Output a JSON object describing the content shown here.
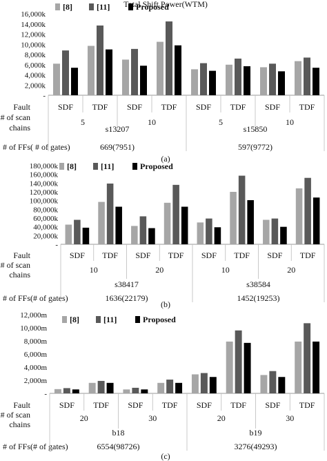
{
  "figure_title": "Total Shift Power(WTM)",
  "legend": {
    "items": [
      {
        "label": "[8]",
        "color": "#a6a6a6"
      },
      {
        "label": "[11]",
        "color": "#595959"
      },
      {
        "label": "Proposed",
        "color": "#000000"
      }
    ]
  },
  "row_labels": {
    "fault": "Fault",
    "scan_chains": [
      "# of scan",
      "chains"
    ],
    "ffs": "# of FFs( # of gates)",
    "ffs_alt": "# of FFs(# of gates)"
  },
  "chart_data": [
    {
      "type": "bar",
      "panel_label": "(a)",
      "y_unit": "k",
      "ylim": [
        0,
        16000
      ],
      "y_ticks": [
        "-",
        "2,000k",
        "4,000k",
        "6,000k",
        "8,000k",
        "10,000k",
        "12,000k",
        "14,000k",
        "16,000k"
      ],
      "categories": [
        "SDF",
        "TDF",
        "SDF",
        "TDF",
        "SDF",
        "TDF",
        "SDF",
        "TDF"
      ],
      "scan_chain_groups": [
        "5",
        "10",
        "5",
        "10"
      ],
      "circuits": [
        {
          "name": "s13207",
          "ffs_gates": "669(7951)"
        },
        {
          "name": "s15850",
          "ffs_gates": "597(9772)"
        }
      ],
      "ffs_label_key": "ffs",
      "series": [
        {
          "name": "[8]",
          "values": [
            6200,
            9700,
            7000,
            10500,
            5100,
            6000,
            5500,
            6700
          ]
        },
        {
          "name": "[11]",
          "values": [
            8800,
            13700,
            9100,
            14500,
            6300,
            7200,
            6200,
            7400
          ]
        },
        {
          "name": "Proposed",
          "values": [
            5400,
            9000,
            5800,
            9800,
            4800,
            5700,
            4700,
            5400
          ]
        }
      ]
    },
    {
      "type": "bar",
      "panel_label": "(b)",
      "y_unit": "k",
      "ylim": [
        0,
        180000
      ],
      "y_ticks": [
        "-",
        "20,000k",
        "40,000k",
        "60,000k",
        "80,000k",
        "100,000k",
        "120,000k",
        "140,000k",
        "160,000k",
        "180,000k"
      ],
      "categories": [
        "SDF",
        "TDF",
        "SDF",
        "TDF",
        "SDF",
        "TDF",
        "SDF",
        "TDF"
      ],
      "scan_chain_groups": [
        "10",
        "20",
        "10",
        "20"
      ],
      "circuits": [
        {
          "name": "s38417",
          "ffs_gates": "1636(22179)"
        },
        {
          "name": "s38584",
          "ffs_gates": "1452(19253)"
        }
      ],
      "ffs_label_key": "ffs_alt",
      "series": [
        {
          "name": "[8]",
          "values": [
            45000,
            97000,
            42000,
            95000,
            50000,
            120000,
            56000,
            128000
          ]
        },
        {
          "name": "[11]",
          "values": [
            56000,
            139000,
            64000,
            136000,
            59000,
            157000,
            59000,
            152000
          ]
        },
        {
          "name": "Proposed",
          "values": [
            38000,
            86000,
            37000,
            86000,
            39000,
            101000,
            40000,
            107000
          ]
        }
      ]
    },
    {
      "type": "bar",
      "panel_label": "(c)",
      "y_unit": "m",
      "ylim": [
        0,
        12000
      ],
      "y_ticks": [
        "-",
        "2,000m",
        "4,000m",
        "6,000m",
        "8,000m",
        "10,000m",
        "12,000m"
      ],
      "categories": [
        "SDF",
        "TDF",
        "SDF",
        "TDF",
        "SDF",
        "TDF",
        "SDF",
        "TDF"
      ],
      "scan_chain_groups": [
        "20",
        "30",
        "20",
        "30"
      ],
      "circuits": [
        {
          "name": "b18",
          "ffs_gates": "6554(98726)"
        },
        {
          "name": "b19",
          "ffs_gates": "3276(49293)"
        }
      ],
      "ffs_label_key": "ffs_alt",
      "series": [
        {
          "name": "[8]",
          "values": [
            650,
            1600,
            600,
            1600,
            2900,
            7900,
            2800,
            7900
          ]
        },
        {
          "name": "[11]",
          "values": [
            800,
            1900,
            850,
            2100,
            3100,
            9600,
            3400,
            10700
          ]
        },
        {
          "name": "Proposed",
          "values": [
            600,
            1600,
            600,
            1600,
            2500,
            7700,
            2500,
            7900
          ]
        }
      ]
    }
  ]
}
